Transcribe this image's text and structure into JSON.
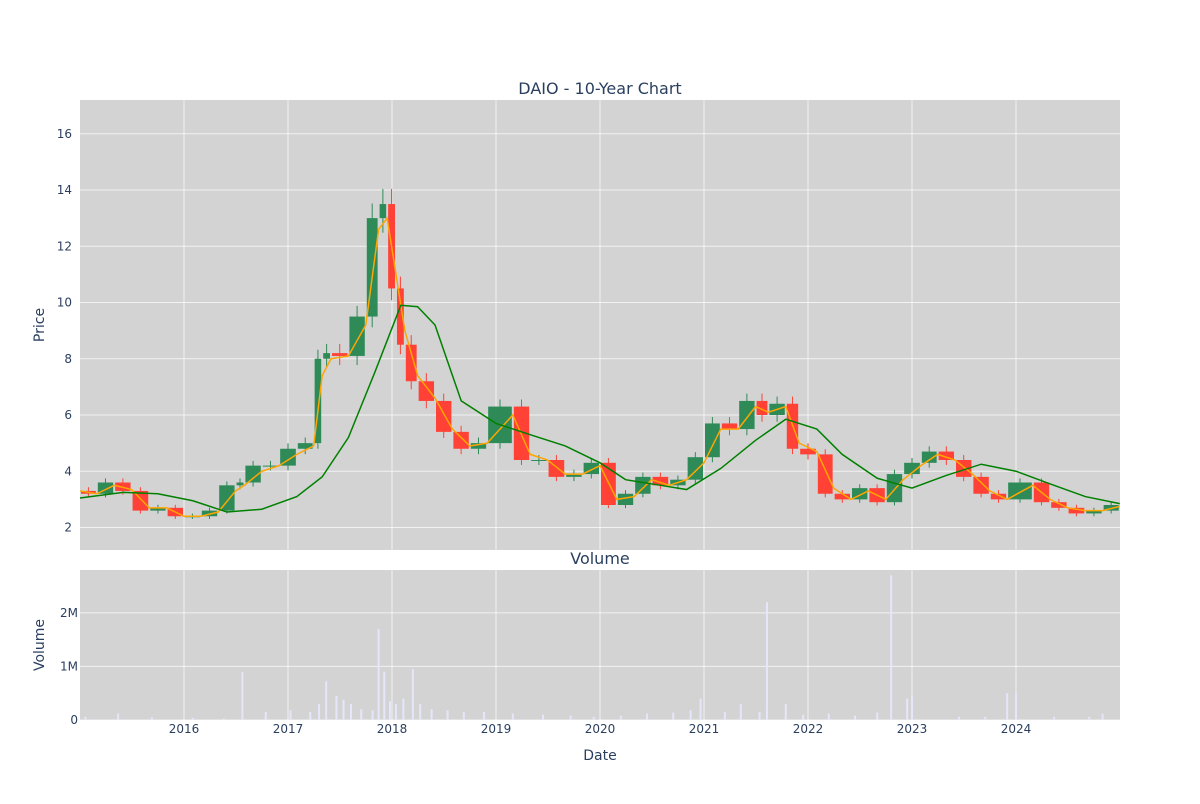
{
  "chart_data": [
    {
      "type": "line",
      "title": "DAIO - 10-Year Chart",
      "xlabel": "",
      "ylabel": "Price",
      "x_ticks": [
        "2016",
        "2017",
        "2018",
        "2019",
        "2020",
        "2021",
        "2022",
        "2023",
        "2024"
      ],
      "y_ticks": [
        "2",
        "4",
        "6",
        "8",
        "10",
        "12",
        "14",
        "16"
      ],
      "xlim": [
        "2015-01-01",
        "2025-01-01"
      ],
      "ylim": [
        1.2,
        17.2
      ],
      "grid": true,
      "series": [
        {
          "style": "candlestick",
          "color": "#2e8b57",
          "down_color": "#ff4136",
          "x": [
            "2015-01-01",
            "2015-03-01",
            "2015-05-01",
            "2015-07-01",
            "2015-09-01",
            "2015-11-01",
            "2016-01-01",
            "2016-03-01",
            "2016-05-01",
            "2016-07-01",
            "2016-08-01",
            "2016-10-01",
            "2016-12-01",
            "2017-02-01",
            "2017-04-01",
            "2017-05-01",
            "2017-06-01",
            "2017-08-01",
            "2017-10-01",
            "2017-11-15",
            "2017-12-15",
            "2018-01-15",
            "2018-02-15",
            "2018-04-01",
            "2018-06-01",
            "2018-08-01",
            "2018-10-01",
            "2018-12-01",
            "2019-03-01",
            "2019-05-01",
            "2019-07-01",
            "2019-09-01",
            "2019-11-01",
            "2020-01-01",
            "2020-03-01",
            "2020-05-01",
            "2020-07-01",
            "2020-09-01",
            "2020-11-01",
            "2021-01-01",
            "2021-03-01",
            "2021-05-01",
            "2021-07-01",
            "2021-08-15",
            "2021-10-15",
            "2021-12-01",
            "2022-02-01",
            "2022-04-01",
            "2022-06-01",
            "2022-08-01",
            "2022-10-01",
            "2022-12-01",
            "2023-02-01",
            "2023-04-01",
            "2023-06-01",
            "2023-08-01",
            "2023-10-01",
            "2023-12-01",
            "2024-03-01",
            "2024-05-01",
            "2024-07-01",
            "2024-09-01",
            "2024-11-01",
            "2024-12-31"
          ],
          "values": [
            3.3,
            3.2,
            3.6,
            3.3,
            2.6,
            2.7,
            2.4,
            2.4,
            2.6,
            3.5,
            3.6,
            4.2,
            4.2,
            4.8,
            5.0,
            8.0,
            8.2,
            8.1,
            9.5,
            13.0,
            13.5,
            10.5,
            8.5,
            7.2,
            6.5,
            5.4,
            4.8,
            5.0,
            6.3,
            4.4,
            4.4,
            3.8,
            3.9,
            4.3,
            2.8,
            3.2,
            3.8,
            3.5,
            3.7,
            4.5,
            5.7,
            5.5,
            6.5,
            6.0,
            6.4,
            4.8,
            4.6,
            3.2,
            3.0,
            3.4,
            2.9,
            3.9,
            4.3,
            4.7,
            4.4,
            3.8,
            3.2,
            3.0,
            3.6,
            2.9,
            2.7,
            2.5,
            2.6,
            2.8
          ]
        },
        {
          "style": "moving-average",
          "color": "#ffa500",
          "x": [
            "2015-01-01",
            "2015-03-01",
            "2015-05-01",
            "2015-07-01",
            "2015-09-01",
            "2015-11-01",
            "2016-01-01",
            "2016-03-01",
            "2016-05-01",
            "2016-07-01",
            "2016-08-01",
            "2016-10-01",
            "2016-12-01",
            "2017-02-01",
            "2017-04-01",
            "2017-05-01",
            "2017-06-01",
            "2017-08-01",
            "2017-10-01",
            "2017-11-15",
            "2017-12-15",
            "2018-01-15",
            "2018-02-15",
            "2018-04-01",
            "2018-06-01",
            "2018-08-01",
            "2018-10-01",
            "2018-12-01",
            "2019-03-01",
            "2019-05-01",
            "2019-07-01",
            "2019-09-01",
            "2019-11-01",
            "2020-01-01",
            "2020-03-01",
            "2020-05-01",
            "2020-07-01",
            "2020-09-01",
            "2020-11-01",
            "2021-01-01",
            "2021-03-01",
            "2021-05-01",
            "2021-07-01",
            "2021-08-15",
            "2021-10-15",
            "2021-12-01",
            "2022-02-01",
            "2022-04-01",
            "2022-06-01",
            "2022-08-01",
            "2022-10-01",
            "2022-12-01",
            "2023-02-01",
            "2023-04-01",
            "2023-06-01",
            "2023-08-01",
            "2023-10-01",
            "2023-12-01",
            "2024-03-01",
            "2024-05-01",
            "2024-07-01",
            "2024-09-01",
            "2024-11-01",
            "2024-12-31"
          ],
          "values": [
            3.3,
            3.2,
            3.5,
            3.35,
            2.7,
            2.7,
            2.4,
            2.4,
            2.55,
            3.3,
            3.5,
            4.0,
            4.2,
            4.6,
            4.9,
            7.4,
            8.0,
            8.1,
            9.2,
            12.6,
            13.0,
            11.0,
            9.0,
            7.4,
            6.6,
            5.5,
            4.9,
            5.0,
            6.0,
            4.6,
            4.4,
            3.9,
            3.9,
            4.2,
            3.0,
            3.1,
            3.7,
            3.5,
            3.7,
            4.3,
            5.5,
            5.5,
            6.3,
            6.1,
            6.3,
            5.0,
            4.7,
            3.4,
            3.0,
            3.3,
            3.0,
            3.7,
            4.2,
            4.6,
            4.4,
            3.9,
            3.3,
            3.0,
            3.5,
            3.0,
            2.7,
            2.6,
            2.6,
            2.75
          ]
        },
        {
          "style": "moving-average",
          "color": "#008000",
          "x": [
            "2015-01-01",
            "2015-06-01",
            "2015-10-01",
            "2016-02-01",
            "2016-06-01",
            "2016-10-01",
            "2017-02-01",
            "2017-05-01",
            "2017-08-01",
            "2017-11-01",
            "2018-02-01",
            "2018-04-01",
            "2018-06-01",
            "2018-09-01",
            "2019-01-01",
            "2019-05-01",
            "2019-09-01",
            "2020-01-01",
            "2020-04-01",
            "2020-08-01",
            "2020-11-01",
            "2021-03-01",
            "2021-07-01",
            "2021-10-15",
            "2022-02-01",
            "2022-05-01",
            "2022-09-01",
            "2023-01-01",
            "2023-05-01",
            "2023-09-01",
            "2024-01-01",
            "2024-05-01",
            "2024-09-01",
            "2024-12-31"
          ],
          "values": [
            3.05,
            3.25,
            3.2,
            2.95,
            2.55,
            2.65,
            3.1,
            3.8,
            5.2,
            7.5,
            9.9,
            9.85,
            9.2,
            6.5,
            5.7,
            5.3,
            4.9,
            4.3,
            3.7,
            3.5,
            3.35,
            4.1,
            5.1,
            5.85,
            5.5,
            4.6,
            3.75,
            3.4,
            3.85,
            4.25,
            4.0,
            3.55,
            3.1,
            2.85
          ]
        }
      ]
    },
    {
      "type": "bar",
      "title": "Volume",
      "xlabel": "Date",
      "ylabel": "Volume",
      "x_ticks": [
        "2016",
        "2017",
        "2018",
        "2019",
        "2020",
        "2021",
        "2022",
        "2023",
        "2024"
      ],
      "y_ticks": [
        "0",
        "1M",
        "2M"
      ],
      "xlim": [
        "2015-01-01",
        "2025-01-01"
      ],
      "ylim": [
        0,
        2800000
      ],
      "grid": true,
      "series": [
        {
          "color": "#e6e6fa",
          "x": [
            "2015-01-20",
            "2015-05-15",
            "2015-09-10",
            "2016-02-01",
            "2016-05-20",
            "2016-07-25",
            "2016-10-15",
            "2017-01-10",
            "2017-03-20",
            "2017-04-20",
            "2017-05-15",
            "2017-06-20",
            "2017-07-15",
            "2017-08-10",
            "2017-09-15",
            "2017-10-25",
            "2017-11-15",
            "2017-12-05",
            "2017-12-25",
            "2018-01-15",
            "2018-02-10",
            "2018-03-15",
            "2018-04-10",
            "2018-05-20",
            "2018-07-15",
            "2018-09-10",
            "2018-11-20",
            "2019-03-01",
            "2019-06-15",
            "2019-09-20",
            "2019-12-10",
            "2020-03-15",
            "2020-06-15",
            "2020-09-15",
            "2020-11-15",
            "2020-12-20",
            "2021-03-15",
            "2021-05-10",
            "2021-07-15",
            "2021-08-10",
            "2021-10-15",
            "2021-12-15",
            "2022-03-15",
            "2022-06-15",
            "2022-09-01",
            "2022-10-20",
            "2022-12-15",
            "2023-01-01",
            "2023-06-15",
            "2023-09-15",
            "2023-12-01",
            "2024-01-01",
            "2024-05-15",
            "2024-09-15",
            "2024-11-01"
          ],
          "values": [
            60000,
            120000,
            50000,
            40000,
            30000,
            900000,
            150000,
            180000,
            150000,
            300000,
            720000,
            450000,
            380000,
            300000,
            200000,
            180000,
            1700000,
            900000,
            350000,
            300000,
            400000,
            950000,
            300000,
            200000,
            180000,
            150000,
            150000,
            120000,
            100000,
            80000,
            60000,
            80000,
            120000,
            140000,
            180000,
            400000,
            150000,
            300000,
            150000,
            2200000,
            300000,
            100000,
            120000,
            80000,
            140000,
            2700000,
            400000,
            450000,
            60000,
            60000,
            500000,
            500000,
            60000,
            60000,
            120000
          ]
        }
      ]
    }
  ]
}
